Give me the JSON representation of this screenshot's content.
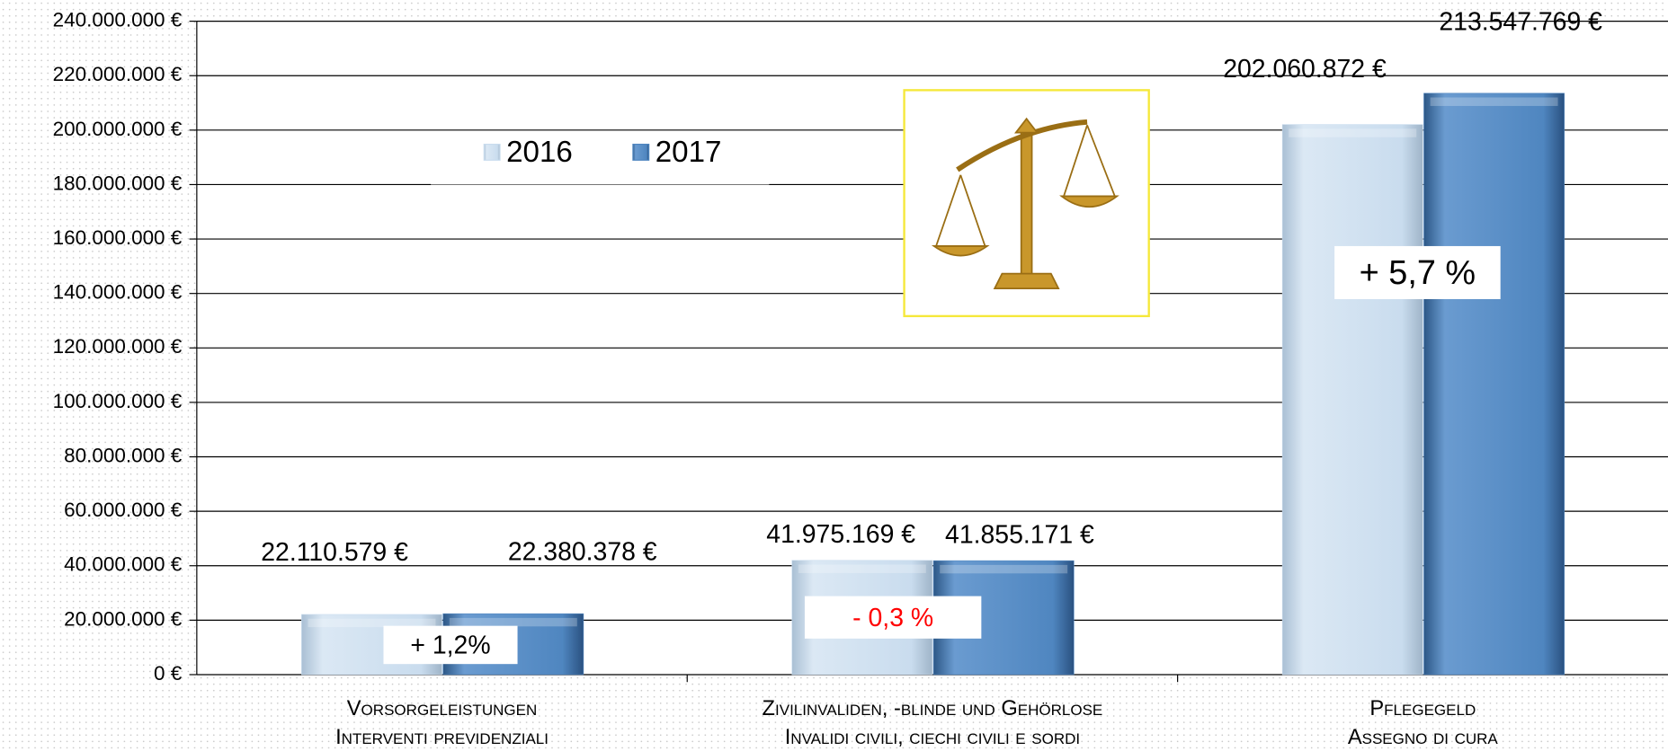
{
  "chart_data": {
    "type": "bar",
    "categories": [
      "Vorsorgeleistungen",
      "Zivilinvaliden, -blinde und Gehörlose",
      "Pflegegeld"
    ],
    "category_sublabels": [
      "Interventi previdenziali",
      "Invalidi civili, ciechi civili e sordi",
      "Assegno di cura"
    ],
    "series": [
      {
        "name": "2016",
        "color": "#c9dcee",
        "values": [
          22110579,
          41975169,
          202060872
        ],
        "value_labels": [
          "22.110.579 €",
          "41.975.169 €",
          "202.060.872 €"
        ]
      },
      {
        "name": "2017",
        "color": "#4f86c0",
        "values": [
          22380378,
          41855171,
          213547769
        ],
        "value_labels": [
          "22.380.378 €",
          "41.855.171 €",
          "213.547.769 €"
        ]
      }
    ],
    "annotations": [
      {
        "text": "+ 1,2%",
        "color": "#000000"
      },
      {
        "text": "- 0,3 %",
        "color": "#ff0000"
      },
      {
        "text": "+ 5,7 %",
        "color": "#000000"
      }
    ],
    "ylim": [
      0,
      240000000
    ],
    "yticks": [
      {
        "value": 0,
        "label": "0 €"
      },
      {
        "value": 20000000,
        "label": "20.000.000 €"
      },
      {
        "value": 40000000,
        "label": "40.000.000 €"
      },
      {
        "value": 60000000,
        "label": "60.000.000 €"
      },
      {
        "value": 80000000,
        "label": "80.000.000 €"
      },
      {
        "value": 100000000,
        "label": "100.000.000 €"
      },
      {
        "value": 120000000,
        "label": "120.000.000 €"
      },
      {
        "value": 140000000,
        "label": "140.000.000 €"
      },
      {
        "value": 160000000,
        "label": "160.000.000 €"
      },
      {
        "value": 180000000,
        "label": "180.000.000 €"
      },
      {
        "value": 200000000,
        "label": "200.000.000 €"
      },
      {
        "value": 220000000,
        "label": "220.000.000 €"
      },
      {
        "value": 240000000,
        "label": "240.000.000 €"
      }
    ],
    "grid": true,
    "legend": "top-left"
  }
}
